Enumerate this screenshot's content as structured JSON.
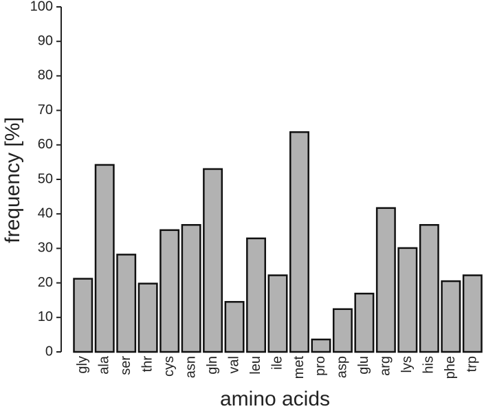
{
  "chart_data": {
    "type": "bar",
    "x_label": "amino acids",
    "y_label": "frequency [%]",
    "categories": [
      "gly",
      "ala",
      "ser",
      "thr",
      "cys",
      "asn",
      "gln",
      "val",
      "leu",
      "ile",
      "met",
      "pro",
      "asp",
      "glu",
      "arg",
      "lys",
      "his",
      "phe",
      "trp"
    ],
    "values": [
      21.2,
      54.2,
      28.2,
      19.8,
      35.3,
      36.8,
      53,
      14.5,
      32.9,
      22.2,
      63.7,
      3.6,
      12.4,
      16.9,
      41.7,
      30.1,
      36.8,
      20.5,
      22.2
    ],
    "color": "#b2b2b2",
    "ylim": [
      0,
      100
    ],
    "yticks": [
      0,
      10,
      20,
      30,
      40,
      50,
      60,
      70,
      80,
      90,
      100
    ]
  }
}
